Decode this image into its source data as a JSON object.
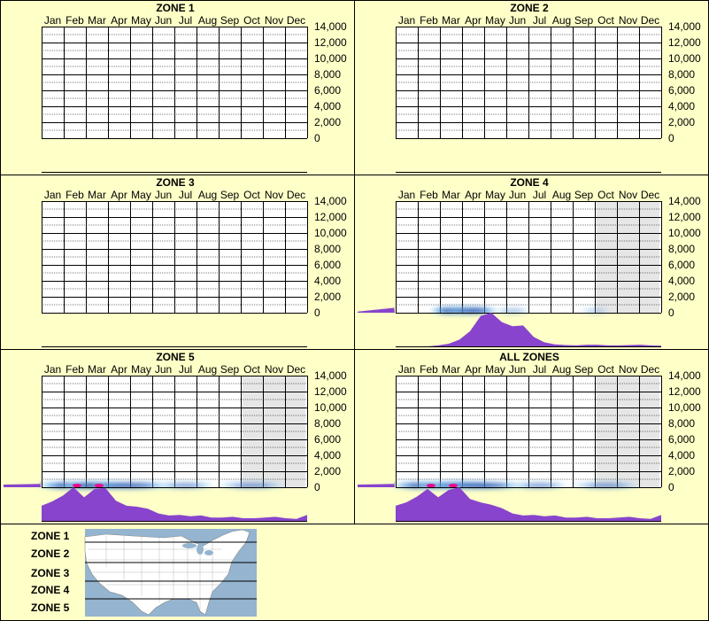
{
  "months": [
    "Jan",
    "Feb",
    "Mar",
    "Apr",
    "May",
    "Jun",
    "Jul",
    "Aug",
    "Sep",
    "Oct",
    "Nov",
    "Dec"
  ],
  "y_ticks": [
    "14,000",
    "12,000",
    "10,000",
    "8,000",
    "6,000",
    "4,000",
    "2,000",
    "0"
  ],
  "colors": {
    "background": "#ffffc8",
    "histogram": "#8844cc",
    "density_dark": "#000080",
    "density_mid": "#0055cc",
    "density_light": "#88ccee",
    "density_peak": "#ee0088",
    "season_shade": "#e6e6e6",
    "map_water": "#94b4d0",
    "map_land": "#ffffff"
  },
  "legend": {
    "labels": [
      "ZONE 1",
      "ZONE 2",
      "ZONE 3",
      "ZONE 4",
      "ZONE 5"
    ]
  },
  "chart_data": [
    {
      "type": "heatmap",
      "title": "ZONE 1",
      "x_categories": [
        "Jan",
        "Feb",
        "Mar",
        "Apr",
        "May",
        "Jun",
        "Jul",
        "Aug",
        "Sep",
        "Oct",
        "Nov",
        "Dec"
      ],
      "ylim": [
        0,
        14000
      ],
      "has_data": false,
      "shaded_months": [],
      "density": [],
      "side_histogram": [],
      "bottom_histogram": []
    },
    {
      "type": "heatmap",
      "title": "ZONE 2",
      "x_categories": [
        "Jan",
        "Feb",
        "Mar",
        "Apr",
        "May",
        "Jun",
        "Jul",
        "Aug",
        "Sep",
        "Oct",
        "Nov",
        "Dec"
      ],
      "ylim": [
        0,
        14000
      ],
      "has_data": false,
      "shaded_months": [],
      "density": [],
      "side_histogram": [],
      "bottom_histogram": []
    },
    {
      "type": "heatmap",
      "title": "ZONE 3",
      "x_categories": [
        "Jan",
        "Feb",
        "Mar",
        "Apr",
        "May",
        "Jun",
        "Jul",
        "Aug",
        "Sep",
        "Oct",
        "Nov",
        "Dec"
      ],
      "ylim": [
        0,
        14000
      ],
      "has_data": false,
      "shaded_months": [],
      "density": [],
      "side_histogram": [],
      "bottom_histogram": []
    },
    {
      "type": "heatmap",
      "title": "ZONE 4",
      "x_categories": [
        "Jan",
        "Feb",
        "Mar",
        "Apr",
        "May",
        "Jun",
        "Jul",
        "Aug",
        "Sep",
        "Oct",
        "Nov",
        "Dec"
      ],
      "ylim": [
        0,
        14000
      ],
      "has_data": true,
      "shaded_months": [
        9,
        11
      ],
      "density": [
        {
          "month": 3.0,
          "elev": 150,
          "intensity": 0.95,
          "spread": 1.1
        },
        {
          "month": 2.6,
          "elev": 150,
          "intensity": 0.7,
          "spread": 0.8
        },
        {
          "month": 3.5,
          "elev": 150,
          "intensity": 0.6,
          "spread": 0.9
        },
        {
          "month": 5.3,
          "elev": 100,
          "intensity": 0.15,
          "spread": 0.6
        },
        {
          "month": 9.0,
          "elev": 100,
          "intensity": 0.1,
          "spread": 0.5
        }
      ],
      "side_histogram": [
        1,
        0.4
      ],
      "bottom_histogram": [
        0,
        0,
        0,
        0,
        0.03,
        0.08,
        0.2,
        0.45,
        0.9,
        1.0,
        0.72,
        0.6,
        0.62,
        0.28,
        0.12,
        0.06,
        0.04,
        0.03,
        0.05,
        0.05,
        0.03,
        0.03,
        0.04,
        0.05,
        0.03,
        0.02
      ]
    },
    {
      "type": "heatmap",
      "title": "ZONE 5",
      "x_categories": [
        "Jan",
        "Feb",
        "Mar",
        "Apr",
        "May",
        "Jun",
        "Jul",
        "Aug",
        "Sep",
        "Oct",
        "Nov",
        "Dec"
      ],
      "ylim": [
        0,
        14000
      ],
      "has_data": true,
      "shaded_months": [
        9,
        11
      ],
      "density": [
        {
          "month": 1.6,
          "elev": 100,
          "intensity": 1.0,
          "spread": 1.4
        },
        {
          "month": 2.6,
          "elev": 100,
          "intensity": 1.0,
          "spread": 1.3
        },
        {
          "month": 4.0,
          "elev": 100,
          "intensity": 0.6,
          "spread": 1.4
        },
        {
          "month": 6.5,
          "elev": 100,
          "intensity": 0.3,
          "spread": 1.0
        },
        {
          "month": 9.5,
          "elev": 100,
          "intensity": 0.3,
          "spread": 1.2
        }
      ],
      "side_histogram": [
        0.3,
        1
      ],
      "bottom_histogram": [
        0.45,
        0.58,
        0.75,
        1.0,
        0.7,
        0.95,
        0.98,
        0.6,
        0.45,
        0.42,
        0.36,
        0.22,
        0.16,
        0.18,
        0.14,
        0.16,
        0.1,
        0.1,
        0.12,
        0.08,
        0.08,
        0.1,
        0.12,
        0.08,
        0.06,
        0.18
      ]
    },
    {
      "type": "heatmap",
      "title": "ALL ZONES",
      "x_categories": [
        "Jan",
        "Feb",
        "Mar",
        "Apr",
        "May",
        "Jun",
        "Jul",
        "Aug",
        "Sep",
        "Oct",
        "Nov",
        "Dec"
      ],
      "ylim": [
        0,
        14000
      ],
      "has_data": true,
      "shaded_months": [
        9,
        11
      ],
      "density": [
        {
          "month": 1.6,
          "elev": 100,
          "intensity": 1.0,
          "spread": 1.4
        },
        {
          "month": 2.6,
          "elev": 100,
          "intensity": 1.0,
          "spread": 1.3
        },
        {
          "month": 3.1,
          "elev": 150,
          "intensity": 0.9,
          "spread": 1.2
        },
        {
          "month": 4.0,
          "elev": 100,
          "intensity": 0.6,
          "spread": 1.4
        },
        {
          "month": 6.5,
          "elev": 100,
          "intensity": 0.3,
          "spread": 1.0
        },
        {
          "month": 9.5,
          "elev": 100,
          "intensity": 0.3,
          "spread": 1.2
        }
      ],
      "side_histogram": [
        0.3,
        1
      ],
      "bottom_histogram": [
        0.45,
        0.55,
        0.72,
        0.95,
        0.7,
        0.92,
        1.0,
        0.65,
        0.55,
        0.48,
        0.38,
        0.22,
        0.16,
        0.18,
        0.14,
        0.16,
        0.1,
        0.1,
        0.12,
        0.08,
        0.08,
        0.1,
        0.12,
        0.08,
        0.06,
        0.18
      ]
    }
  ]
}
